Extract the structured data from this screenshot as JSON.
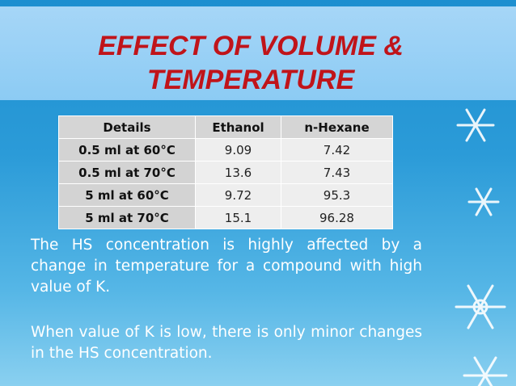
{
  "header": {
    "title_lines": [
      "EFFECT OF VOLUME &",
      "TEMPERATURE"
    ]
  },
  "table": {
    "columns": [
      "Details",
      "Ethanol",
      "n-Hexane"
    ],
    "rows": [
      [
        "0.5 ml at 60°C",
        9.09,
        7.42
      ],
      [
        "0.5 ml at 70°C",
        13.6,
        7.43
      ],
      [
        "5 ml at 60°C",
        9.72,
        95.3
      ],
      [
        "5 ml at 70°C",
        15.1,
        96.28
      ]
    ]
  },
  "paragraphs": [
    "The HS concentration is highly affected by a change in temperature for a compound with high value of K.",
    "When value of K is low, there is only minor changes in  the HS concentration."
  ]
}
